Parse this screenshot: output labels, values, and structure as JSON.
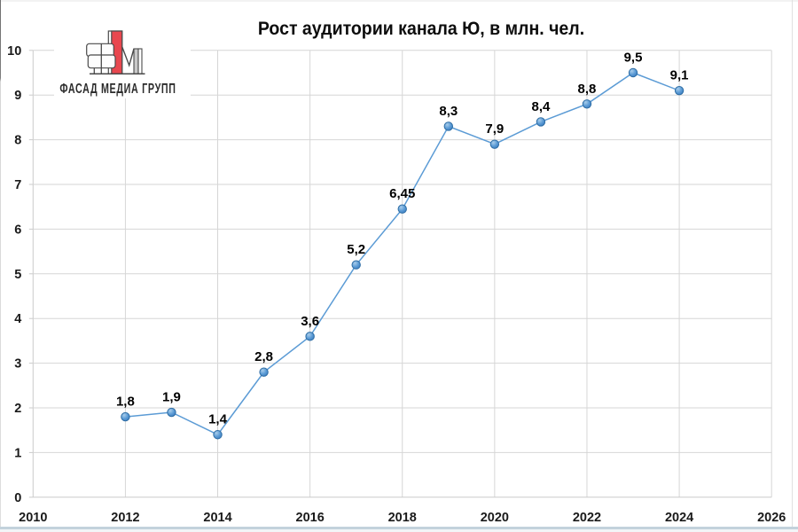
{
  "logo": {
    "text": "ФАСАД МЕДИА ГРУПП",
    "colors": {
      "red": "#e8474f",
      "outline": "#4a4a4a",
      "gray": "#c9c9c9",
      "text": "#2b2b2b"
    }
  },
  "chart_data": {
    "type": "line",
    "title": "Рост аудитории канала Ю, в млн. чел.",
    "xlabel": "",
    "ylabel": "",
    "x": [
      2012,
      2013,
      2014,
      2015,
      2016,
      2017,
      2018,
      2019,
      2020,
      2021,
      2022,
      2023,
      2024
    ],
    "values": [
      1.8,
      1.9,
      1.4,
      2.8,
      3.6,
      5.2,
      6.45,
      8.3,
      7.9,
      8.4,
      8.8,
      9.5,
      9.1
    ],
    "point_labels": [
      "1,8",
      "1,9",
      "1,4",
      "2,8",
      "3,6",
      "5,2",
      "6,45",
      "8,3",
      "7,9",
      "8,4",
      "8,8",
      "9,5",
      "9,1"
    ],
    "xlim": [
      2010,
      2026
    ],
    "ylim": [
      0,
      10
    ],
    "x_ticks": [
      2010,
      2012,
      2014,
      2016,
      2018,
      2020,
      2022,
      2024,
      2026
    ],
    "y_ticks": [
      0,
      1,
      2,
      3,
      4,
      5,
      6,
      7,
      8,
      9,
      10
    ],
    "grid": true,
    "line_color": "#5B9BD5",
    "marker_edge": "#2E6DA4",
    "marker_gradient": [
      "#A8CCEA",
      "#5B9BD5",
      "#3A7ABF"
    ],
    "grid_color": "#D6D6D6",
    "axis_color": "#CBCBCB",
    "label_color": "#000000",
    "tick_label_color": "#1a1a1a"
  }
}
